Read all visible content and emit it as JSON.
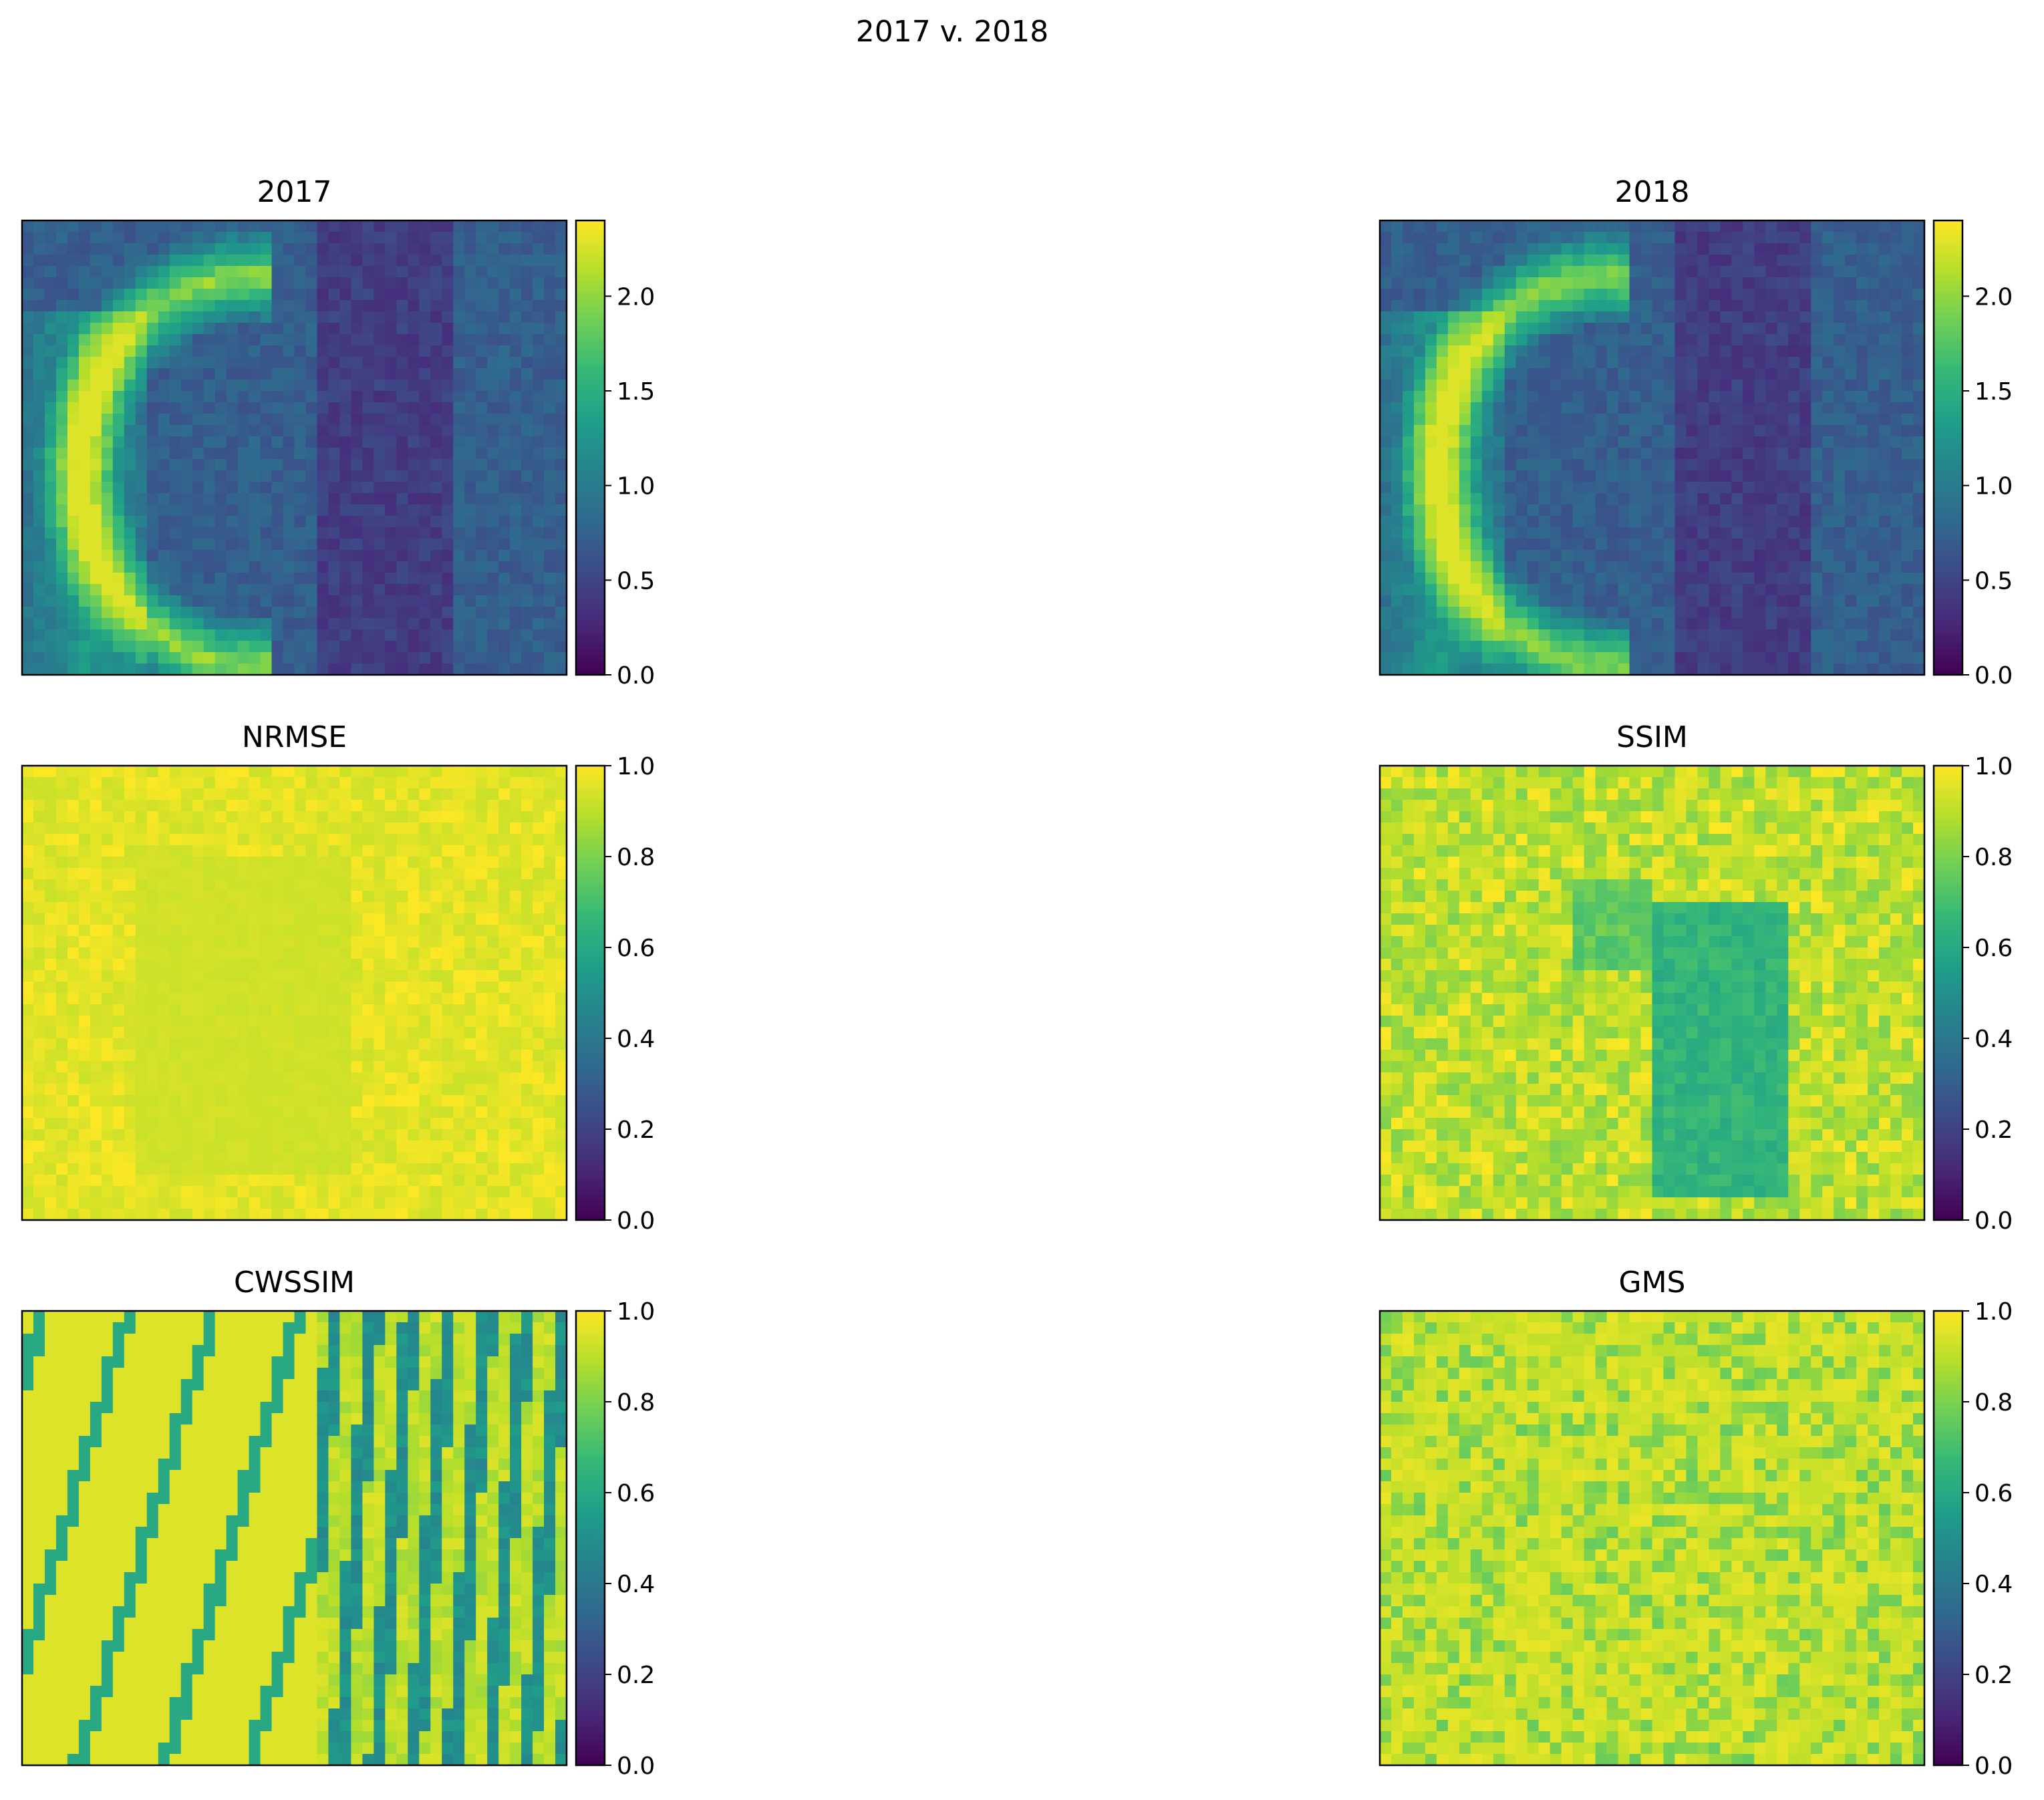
{
  "figure": {
    "suptitle": "2017 v. 2018"
  },
  "chart_data": [
    {
      "type": "heatmap",
      "title": "2017",
      "colormap": "viridis",
      "vmin": 0.0,
      "vmax": 2.4,
      "colorbar_ticks": [
        "0.0",
        "0.5",
        "1.0",
        "1.5",
        "2.0"
      ],
      "colorbar_values": [
        0.0,
        0.5,
        1.0,
        1.5,
        2.0
      ],
      "description_pattern": "crescent",
      "show_axes_ticks": false
    },
    {
      "type": "heatmap",
      "title": "2018",
      "colormap": "viridis",
      "vmin": 0.0,
      "vmax": 2.4,
      "colorbar_ticks": [
        "0.0",
        "0.5",
        "1.0",
        "1.5",
        "2.0"
      ],
      "colorbar_values": [
        0.0,
        0.5,
        1.0,
        1.5,
        2.0
      ],
      "description_pattern": "crescent",
      "show_axes_ticks": false
    },
    {
      "type": "heatmap",
      "title": "NRMSE",
      "colormap": "viridis",
      "vmin": 0.0,
      "vmax": 1.0,
      "colorbar_ticks": [
        "0.0",
        "0.2",
        "0.4",
        "0.6",
        "0.8",
        "1.0"
      ],
      "colorbar_values": [
        0.0,
        0.2,
        0.4,
        0.6,
        0.8,
        1.0
      ],
      "description_pattern": "mostly-high",
      "show_axes_ticks": false
    },
    {
      "type": "heatmap",
      "title": "SSIM",
      "colormap": "viridis",
      "vmin": 0.0,
      "vmax": 1.0,
      "colorbar_ticks": [
        "0.0",
        "0.2",
        "0.4",
        "0.6",
        "0.8",
        "1.0"
      ],
      "colorbar_values": [
        0.0,
        0.2,
        0.4,
        0.6,
        0.8,
        1.0
      ],
      "description_pattern": "ssim",
      "show_axes_ticks": false
    },
    {
      "type": "heatmap",
      "title": "CWSSIM",
      "colormap": "viridis",
      "vmin": 0.0,
      "vmax": 1.0,
      "colorbar_ticks": [
        "0.0",
        "0.2",
        "0.4",
        "0.6",
        "0.8",
        "1.0"
      ],
      "colorbar_values": [
        0.0,
        0.2,
        0.4,
        0.6,
        0.8,
        1.0
      ],
      "description_pattern": "streaks",
      "show_axes_ticks": false
    },
    {
      "type": "heatmap",
      "title": "GMS",
      "colormap": "viridis",
      "vmin": 0.0,
      "vmax": 1.0,
      "colorbar_ticks": [
        "0.0",
        "0.2",
        "0.4",
        "0.6",
        "0.8",
        "1.0"
      ],
      "colorbar_values": [
        0.0,
        0.2,
        0.4,
        0.6,
        0.8,
        1.0
      ],
      "description_pattern": "noisy-high",
      "show_axes_ticks": false
    }
  ]
}
